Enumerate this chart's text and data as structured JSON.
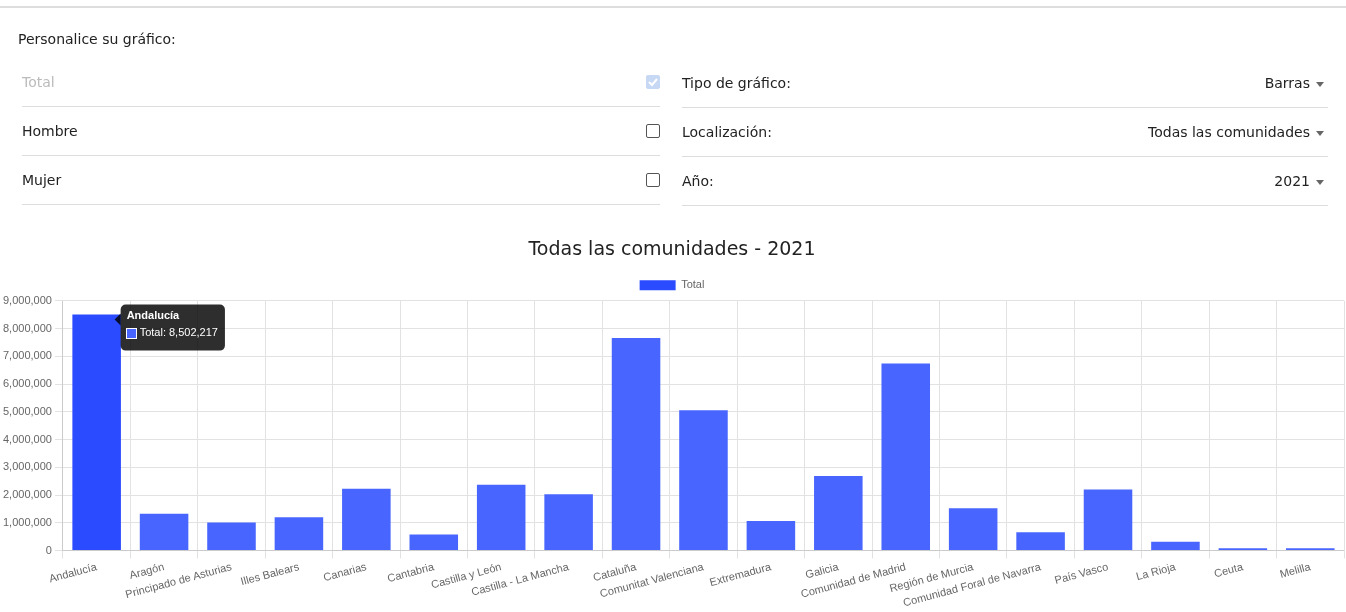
{
  "chart_data": {
    "type": "bar",
    "title": "Todas las comunidades - 2021",
    "categories": [
      "Andalucía",
      "Aragón",
      "Principado de Asturias",
      "Illes Balears",
      "Canarias",
      "Cantabria",
      "Castilla y León",
      "Castilla - La Mancha",
      "Cataluña",
      "Comunitat Valenciana",
      "Extremadura",
      "Galicia",
      "Comunidad de Madrid",
      "Región de Murcia",
      "Comunidad Foral de Navarra",
      "País Vasco",
      "La Rioja",
      "Ceuta",
      "Melilla"
    ],
    "series": [
      {
        "name": "Total",
        "color": "#4866ff",
        "colors": [
          "#2a4bff",
          "#4866ff",
          "#4866ff",
          "#4866ff",
          "#4866ff",
          "#4866ff",
          "#4866ff",
          "#4866ff",
          "#4866ff",
          "#4866ff",
          "#4866ff",
          "#4866ff",
          "#4866ff",
          "#4866ff",
          "#4866ff",
          "#4866ff",
          "#4866ff",
          "#4866ff",
          "#4866ff"
        ],
        "values": [
          8502217,
          1330000,
          1010000,
          1200000,
          2230000,
          580000,
          2370000,
          2030000,
          7660000,
          5060000,
          1060000,
          2690000,
          6740000,
          1520000,
          660000,
          2200000,
          320000,
          80000,
          80000
        ]
      }
    ],
    "ylim": [
      0,
      9000000
    ],
    "yticks": [
      0,
      {
        "value": 1000000,
        "label": "1,000,000"
      },
      {
        "value": 2000000,
        "label": "2,000,000"
      },
      {
        "value": 3000000,
        "label": "3,000,000"
      },
      {
        "value": 4000000,
        "label": "4,000,000"
      },
      {
        "value": 5000000,
        "label": "5,000,000"
      },
      {
        "value": 6000000,
        "label": "6,000,000"
      },
      {
        "value": 7000000,
        "label": "7,000,000"
      },
      {
        "value": 8000000,
        "label": "8,000,000"
      },
      {
        "value": 9000000,
        "label": "9,000,000"
      }
    ],
    "grid": true,
    "legend": "top",
    "annotations": [
      "Personalice su gráfico:",
      "Total",
      "Hombre",
      "Mujer",
      "Tipo de gráfico:",
      "Barras",
      "Localización:",
      "Todas las comunidades",
      "Año:",
      "2021",
      "Total: 8,502,217",
      {
        "text": "Andalucía",
        "x": "Andalucía",
        "y": 8502217
      }
    ]
  }
}
